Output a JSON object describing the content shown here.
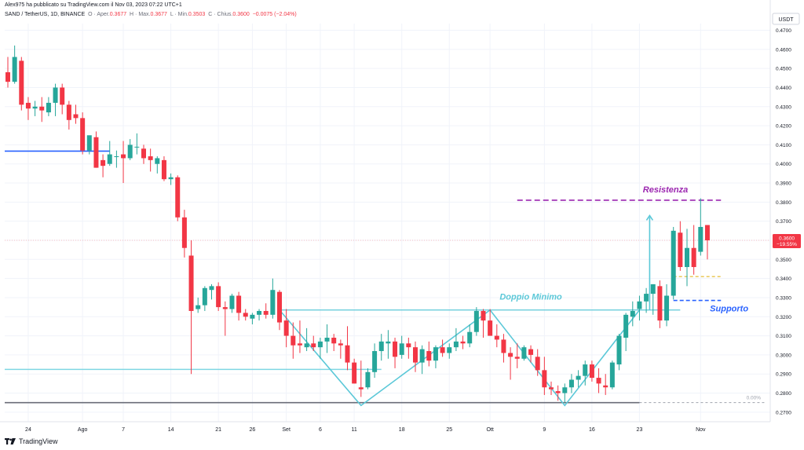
{
  "header": {
    "published_by": "Alex975 ha pubblicato su TradingView.com il Nov 03, 2023 07:22 UTC+1",
    "symbol": "SAND / TetherUS, 1D, BINANCE",
    "ohlc": {
      "open_label": "O · Aper.",
      "open": "0.3677",
      "high_label": "H · Max.",
      "high": "0.3677",
      "low_label": "L · Min.",
      "low": "0.3503",
      "close_label": "C · Chius.",
      "close": "0.3600",
      "change": "−0.0075 (−2.04%)"
    }
  },
  "footer": {
    "brand": "TradingView"
  },
  "colors": {
    "up": "#26a69a",
    "down": "#f23645",
    "pattern": "#5bc8d8",
    "resistance": "#9c27b0",
    "support": "#2962ff",
    "grid": "#f0f3fa"
  },
  "chart_data": {
    "type": "candlestick",
    "currency": "USDT",
    "ylim": [
      0.265,
      0.4735
    ],
    "y_ticks": [
      "0.2700",
      "0.2800",
      "0.2900",
      "0.3000",
      "0.3100",
      "0.3200",
      "0.3300",
      "0.3400",
      "0.3500",
      "0.3600",
      "0.3700",
      "0.3800",
      "0.3900",
      "0.4000",
      "0.4100",
      "0.4200",
      "0.4300",
      "0.4400",
      "0.4500",
      "0.4600",
      "0.4700"
    ],
    "x_ticks": [
      {
        "label": "24",
        "bar": 3
      },
      {
        "label": "Ago",
        "bar": 11
      },
      {
        "label": "7",
        "bar": 17
      },
      {
        "label": "14",
        "bar": 24
      },
      {
        "label": "21",
        "bar": 31
      },
      {
        "label": "26",
        "bar": 36
      },
      {
        "label": "Set",
        "bar": 41
      },
      {
        "label": "6",
        "bar": 46
      },
      {
        "label": "11",
        "bar": 51
      },
      {
        "label": "18",
        "bar": 58
      },
      {
        "label": "25",
        "bar": 65
      },
      {
        "label": "Ott",
        "bar": 71
      },
      {
        "label": "9",
        "bar": 79
      },
      {
        "label": "16",
        "bar": 86
      },
      {
        "label": "23",
        "bar": 93
      },
      {
        "label": "Nov",
        "bar": 102
      }
    ],
    "candles": [
      [
        0.448,
        0.456,
        0.44,
        0.443
      ],
      [
        0.443,
        0.462,
        0.442,
        0.456
      ],
      [
        0.454,
        0.456,
        0.428,
        0.431
      ],
      [
        0.432,
        0.435,
        0.423,
        0.429
      ],
      [
        0.429,
        0.433,
        0.425,
        0.43
      ],
      [
        0.43,
        0.435,
        0.422,
        0.428
      ],
      [
        0.427,
        0.435,
        0.425,
        0.432
      ],
      [
        0.432,
        0.442,
        0.425,
        0.44
      ],
      [
        0.44,
        0.442,
        0.426,
        0.431
      ],
      [
        0.431,
        0.433,
        0.418,
        0.423
      ],
      [
        0.426,
        0.431,
        0.421,
        0.424
      ],
      [
        0.424,
        0.427,
        0.405,
        0.407
      ],
      [
        0.407,
        0.414,
        0.405,
        0.415
      ],
      [
        0.414,
        0.417,
        0.398,
        0.398
      ],
      [
        0.402,
        0.405,
        0.393,
        0.399
      ],
      [
        0.4,
        0.412,
        0.399,
        0.405
      ],
      [
        0.404,
        0.407,
        0.398,
        0.404
      ],
      [
        0.405,
        0.412,
        0.39,
        0.403
      ],
      [
        0.403,
        0.413,
        0.402,
        0.41
      ],
      [
        0.409,
        0.416,
        0.405,
        0.409
      ],
      [
        0.408,
        0.41,
        0.4,
        0.403
      ],
      [
        0.404,
        0.408,
        0.396,
        0.402
      ],
      [
        0.4,
        0.404,
        0.395,
        0.403
      ],
      [
        0.402,
        0.404,
        0.391,
        0.392
      ],
      [
        0.392,
        0.395,
        0.389,
        0.393
      ],
      [
        0.393,
        0.394,
        0.37,
        0.372
      ],
      [
        0.372,
        0.376,
        0.351,
        0.356
      ],
      [
        0.352,
        0.36,
        0.29,
        0.323
      ],
      [
        0.324,
        0.33,
        0.322,
        0.326
      ],
      [
        0.326,
        0.336,
        0.323,
        0.335
      ],
      [
        0.334,
        0.337,
        0.329,
        0.336
      ],
      [
        0.336,
        0.338,
        0.323,
        0.325
      ],
      [
        0.325,
        0.328,
        0.31,
        0.324
      ],
      [
        0.324,
        0.332,
        0.322,
        0.331
      ],
      [
        0.331,
        0.333,
        0.318,
        0.322
      ],
      [
        0.322,
        0.324,
        0.318,
        0.32
      ],
      [
        0.319,
        0.322,
        0.316,
        0.321
      ],
      [
        0.321,
        0.324,
        0.318,
        0.323
      ],
      [
        0.323,
        0.327,
        0.319,
        0.321
      ],
      [
        0.321,
        0.34,
        0.319,
        0.334
      ],
      [
        0.333,
        0.334,
        0.313,
        0.317
      ],
      [
        0.318,
        0.324,
        0.304,
        0.31
      ],
      [
        0.31,
        0.317,
        0.298,
        0.305
      ],
      [
        0.306,
        0.318,
        0.301,
        0.305
      ],
      [
        0.304,
        0.314,
        0.302,
        0.306
      ],
      [
        0.306,
        0.31,
        0.302,
        0.304
      ],
      [
        0.304,
        0.309,
        0.298,
        0.307
      ],
      [
        0.307,
        0.316,
        0.301,
        0.309
      ],
      [
        0.309,
        0.311,
        0.302,
        0.306
      ],
      [
        0.306,
        0.308,
        0.298,
        0.305
      ],
      [
        0.305,
        0.315,
        0.292,
        0.296
      ],
      [
        0.296,
        0.298,
        0.285,
        0.285
      ],
      [
        0.283,
        0.297,
        0.278,
        0.282
      ],
      [
        0.283,
        0.293,
        0.282,
        0.291
      ],
      [
        0.291,
        0.306,
        0.288,
        0.302
      ],
      [
        0.302,
        0.311,
        0.297,
        0.307
      ],
      [
        0.306,
        0.313,
        0.298,
        0.307
      ],
      [
        0.307,
        0.309,
        0.293,
        0.299
      ],
      [
        0.3,
        0.31,
        0.298,
        0.306
      ],
      [
        0.306,
        0.309,
        0.298,
        0.304
      ],
      [
        0.304,
        0.307,
        0.291,
        0.296
      ],
      [
        0.296,
        0.305,
        0.29,
        0.303
      ],
      [
        0.302,
        0.307,
        0.294,
        0.297
      ],
      [
        0.297,
        0.305,
        0.293,
        0.304
      ],
      [
        0.304,
        0.308,
        0.299,
        0.301
      ],
      [
        0.301,
        0.306,
        0.298,
        0.304
      ],
      [
        0.304,
        0.314,
        0.302,
        0.307
      ],
      [
        0.307,
        0.31,
        0.303,
        0.306
      ],
      [
        0.306,
        0.316,
        0.304,
        0.312
      ],
      [
        0.312,
        0.325,
        0.31,
        0.323
      ],
      [
        0.323,
        0.324,
        0.309,
        0.318
      ],
      [
        0.318,
        0.324,
        0.31,
        0.31
      ],
      [
        0.31,
        0.316,
        0.304,
        0.308
      ],
      [
        0.308,
        0.311,
        0.296,
        0.301
      ],
      [
        0.301,
        0.304,
        0.287,
        0.299
      ],
      [
        0.299,
        0.306,
        0.293,
        0.298
      ],
      [
        0.298,
        0.305,
        0.297,
        0.304
      ],
      [
        0.303,
        0.305,
        0.296,
        0.3
      ],
      [
        0.299,
        0.303,
        0.289,
        0.292
      ],
      [
        0.292,
        0.299,
        0.279,
        0.283
      ],
      [
        0.283,
        0.286,
        0.279,
        0.282
      ],
      [
        0.281,
        0.284,
        0.276,
        0.28
      ],
      [
        0.28,
        0.285,
        0.275,
        0.283
      ],
      [
        0.283,
        0.29,
        0.28,
        0.287
      ],
      [
        0.287,
        0.292,
        0.283,
        0.289
      ],
      [
        0.289,
        0.297,
        0.284,
        0.295
      ],
      [
        0.295,
        0.297,
        0.286,
        0.288
      ],
      [
        0.288,
        0.293,
        0.28,
        0.285
      ],
      [
        0.284,
        0.29,
        0.279,
        0.283
      ],
      [
        0.283,
        0.297,
        0.282,
        0.296
      ],
      [
        0.295,
        0.311,
        0.292,
        0.31
      ],
      [
        0.309,
        0.322,
        0.302,
        0.321
      ],
      [
        0.32,
        0.328,
        0.315,
        0.323
      ],
      [
        0.324,
        0.331,
        0.318,
        0.328
      ],
      [
        0.328,
        0.335,
        0.322,
        0.332
      ],
      [
        0.332,
        0.337,
        0.321,
        0.337
      ],
      [
        0.336,
        0.339,
        0.314,
        0.318
      ],
      [
        0.318,
        0.337,
        0.315,
        0.331
      ],
      [
        0.331,
        0.367,
        0.329,
        0.365
      ],
      [
        0.364,
        0.37,
        0.344,
        0.346
      ],
      [
        0.346,
        0.366,
        0.336,
        0.356
      ],
      [
        0.356,
        0.368,
        0.342,
        0.346
      ],
      [
        0.354,
        0.382,
        0.352,
        0.367
      ],
      [
        0.368,
        0.368,
        0.35,
        0.36
      ]
    ],
    "price_badge": {
      "value": "0.3600",
      "change": "−19.55%"
    },
    "horizontal_lines": [
      {
        "name": "blue-level",
        "y": 0.4067,
        "x_from_bar": 0,
        "x_to_bar": 15
      },
      {
        "name": "cyan-level",
        "y": 0.2924,
        "x_from_bar": 0,
        "x_to_bar": 55
      },
      {
        "name": "dark-level",
        "y": 0.275,
        "x_from_bar": 0,
        "x_to_bar": 93
      },
      {
        "name": "neckline",
        "y": 0.3235,
        "x_from_bar": 40,
        "x_to_bar": 99
      }
    ],
    "double_bottom": [
      [
        40,
        0.3235
      ],
      [
        52,
        0.2735
      ],
      [
        71,
        0.3235
      ],
      [
        82,
        0.2735
      ],
      [
        93,
        0.3235
      ]
    ],
    "target_arrow": {
      "bar": 94.5,
      "from": 0.3235,
      "to": 0.373
    },
    "resistance": {
      "label": "Resistenza",
      "y": 0.381,
      "from_bar": 75,
      "to_bar": 105
    },
    "support": {
      "label": "Supporto",
      "y": 0.3285,
      "from_bar": 98,
      "to_bar": 105
    },
    "yellow_level": {
      "y": 0.341,
      "from_bar": 98,
      "to_bar": 105
    },
    "annotations": {
      "pattern": "Doppio Minimo",
      "fib": "0.00%"
    }
  }
}
